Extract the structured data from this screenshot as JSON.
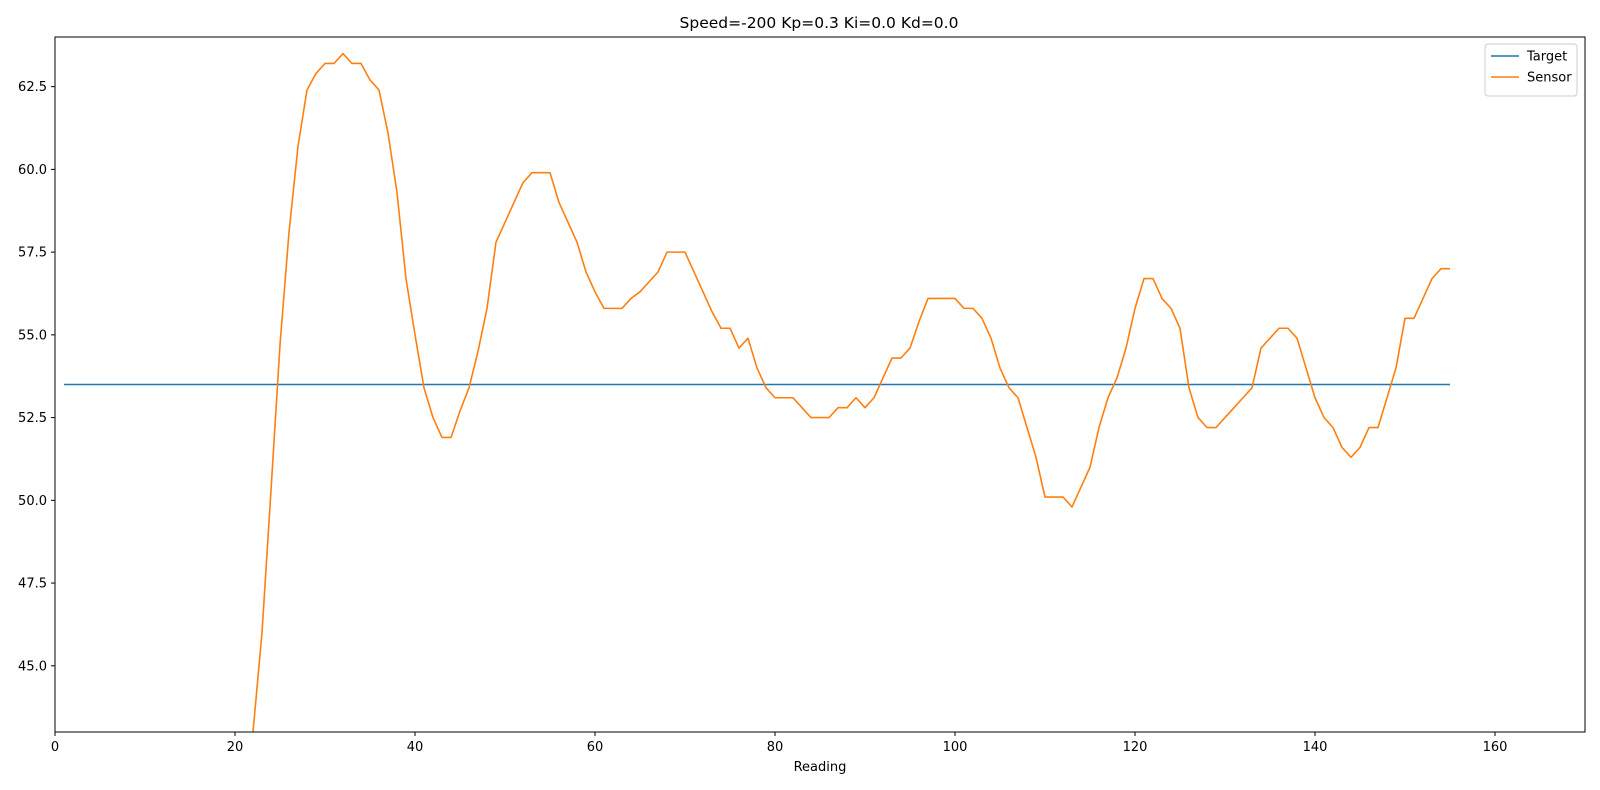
{
  "chart_data": {
    "type": "line",
    "title": "Speed=-200 Kp=0.3 Ki=0.0 Kd=0.0",
    "xlabel": "Reading",
    "ylabel": "",
    "xlim": [
      0,
      170
    ],
    "ylim": [
      43.0,
      64.0
    ],
    "xticks": [
      0,
      20,
      40,
      60,
      80,
      100,
      120,
      140,
      160
    ],
    "yticks": [
      45.0,
      47.5,
      50.0,
      52.5,
      55.0,
      57.5,
      60.0,
      62.5
    ],
    "grid": false,
    "legend": "top-right",
    "series": [
      {
        "name": "Target",
        "color": "#1f77b4",
        "x": [
          1,
          155
        ],
        "y": [
          53.5,
          53.5
        ]
      },
      {
        "name": "Sensor",
        "color": "#ff7f0e",
        "x": [
          22,
          23,
          24,
          25,
          26,
          27,
          28,
          29,
          30,
          31,
          32,
          33,
          34,
          35,
          36,
          37,
          38,
          39,
          40,
          41,
          42,
          43,
          44,
          45,
          46,
          47,
          48,
          49,
          50,
          51,
          52,
          53,
          54,
          55,
          56,
          57,
          58,
          59,
          60,
          61,
          62,
          63,
          64,
          65,
          66,
          67,
          68,
          69,
          70,
          71,
          72,
          73,
          74,
          75,
          76,
          77,
          78,
          79,
          80,
          81,
          82,
          83,
          84,
          85,
          86,
          87,
          88,
          89,
          90,
          91,
          92,
          93,
          94,
          95,
          96,
          97,
          98,
          99,
          100,
          101,
          102,
          103,
          104,
          105,
          106,
          107,
          108,
          109,
          110,
          111,
          112,
          113,
          114,
          115,
          116,
          117,
          118,
          119,
          120,
          121,
          122,
          123,
          124,
          125,
          126,
          127,
          128,
          129,
          130,
          131,
          132,
          133,
          134,
          135,
          136,
          137,
          138,
          139,
          140,
          141,
          142,
          143,
          144,
          145,
          146,
          147,
          148,
          149,
          150,
          151,
          152,
          153,
          154,
          155
        ],
        "y": [
          43.0,
          46.0,
          50.3,
          54.7,
          58.1,
          60.7,
          62.4,
          62.9,
          63.2,
          63.2,
          63.5,
          63.2,
          63.2,
          62.7,
          62.4,
          61.1,
          59.3,
          56.7,
          55.0,
          53.4,
          52.5,
          51.9,
          51.9,
          52.7,
          53.4,
          54.5,
          55.8,
          57.8,
          58.4,
          59.0,
          59.6,
          59.9,
          59.9,
          59.9,
          59.0,
          58.4,
          57.8,
          56.9,
          56.3,
          55.8,
          55.8,
          55.8,
          56.1,
          56.3,
          56.6,
          56.9,
          57.5,
          57.5,
          57.5,
          56.9,
          56.3,
          55.7,
          55.2,
          55.2,
          54.6,
          54.9,
          54.0,
          53.4,
          53.1,
          53.1,
          53.1,
          52.8,
          52.5,
          52.5,
          52.5,
          52.8,
          52.8,
          53.1,
          52.8,
          53.1,
          53.7,
          54.3,
          54.3,
          54.6,
          55.4,
          56.1,
          56.1,
          56.1,
          56.1,
          55.8,
          55.8,
          55.5,
          54.9,
          54.0,
          53.4,
          53.1,
          52.2,
          51.3,
          50.1,
          50.1,
          50.1,
          49.8,
          50.4,
          51.0,
          52.2,
          53.1,
          53.7,
          54.6,
          55.8,
          56.7,
          56.7,
          56.1,
          55.8,
          55.2,
          53.4,
          52.5,
          52.2,
          52.2,
          52.5,
          52.8,
          53.1,
          53.4,
          54.6,
          54.9,
          55.2,
          55.2,
          54.9,
          54.0,
          53.1,
          52.5,
          52.2,
          51.6,
          51.3,
          51.6,
          52.2,
          52.2,
          53.1,
          54.0,
          55.5,
          55.5,
          56.1,
          56.7,
          57.0,
          57.0
        ]
      }
    ]
  }
}
